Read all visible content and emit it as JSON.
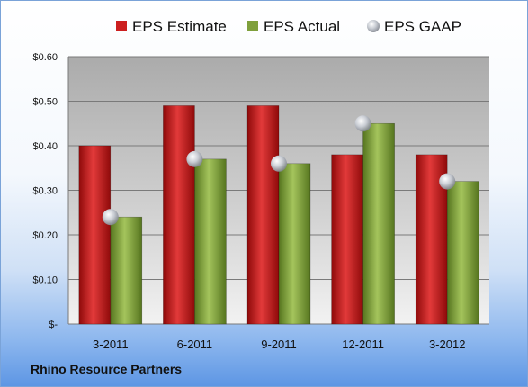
{
  "chart_data": {
    "type": "bar",
    "title": "",
    "xlabel": "",
    "ylabel": "",
    "categories": [
      "3-2011",
      "6-2011",
      "9-2011",
      "12-2011",
      "3-2012"
    ],
    "series": [
      {
        "name": "EPS Estimate",
        "kind": "bar",
        "color": "#cc1f1f",
        "values": [
          0.4,
          0.49,
          0.49,
          0.38,
          0.38
        ]
      },
      {
        "name": "EPS Actual",
        "kind": "bar",
        "color": "#7fa03c",
        "values": [
          0.24,
          0.37,
          0.36,
          0.45,
          0.32
        ]
      },
      {
        "name": "EPS GAAP",
        "kind": "marker",
        "color": "#b8bcc4",
        "values": [
          0.24,
          0.37,
          0.36,
          0.45,
          0.32
        ]
      }
    ],
    "ylim": [
      0,
      0.6
    ],
    "yticks": [
      0,
      0.1,
      0.2,
      0.3,
      0.4,
      0.5,
      0.6
    ],
    "ytick_labels": [
      "$-",
      "$0.10",
      "$0.20",
      "$0.30",
      "$0.40",
      "$0.50",
      "$0.60"
    ],
    "grid": true,
    "legend_position": "top"
  },
  "footer": {
    "company": "Rhino Resource Partners"
  }
}
